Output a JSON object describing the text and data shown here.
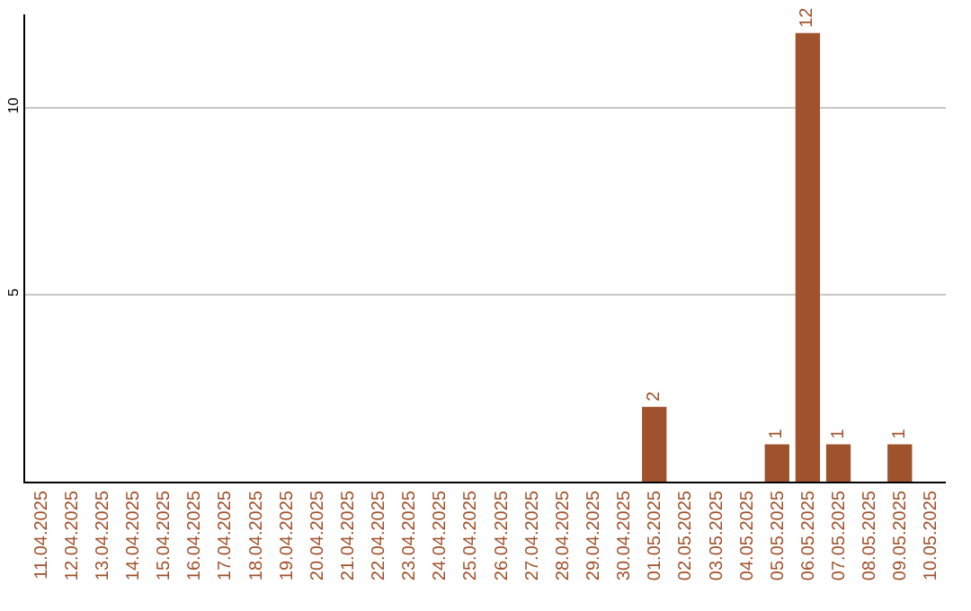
{
  "chart_data": {
    "type": "bar",
    "categories": [
      "11.04.2025",
      "12.04.2025",
      "13.04.2025",
      "14.04.2025",
      "15.04.2025",
      "16.04.2025",
      "17.04.2025",
      "18.04.2025",
      "19.04.2025",
      "20.04.2025",
      "21.04.2025",
      "22.04.2025",
      "23.04.2025",
      "24.04.2025",
      "25.04.2025",
      "26.04.2025",
      "27.04.2025",
      "28.04.2025",
      "29.04.2025",
      "30.04.2025",
      "01.05.2025",
      "02.05.2025",
      "03.05.2025",
      "04.05.2025",
      "05.05.2025",
      "06.05.2025",
      "07.05.2025",
      "08.05.2025",
      "09.05.2025",
      "10.05.2025"
    ],
    "values": [
      0,
      0,
      0,
      0,
      0,
      0,
      0,
      0,
      0,
      0,
      0,
      0,
      0,
      0,
      0,
      0,
      0,
      0,
      0,
      0,
      2,
      0,
      0,
      0,
      1,
      12,
      1,
      0,
      1,
      0
    ],
    "value_labels": [
      null,
      null,
      null,
      null,
      null,
      null,
      null,
      null,
      null,
      null,
      null,
      null,
      null,
      null,
      null,
      null,
      null,
      null,
      null,
      null,
      "2",
      null,
      null,
      null,
      "1",
      "12",
      "1",
      null,
      "1",
      null
    ],
    "color": "#a0522d",
    "ylim": [
      0,
      12.5
    ],
    "yticks": [
      5,
      10
    ],
    "grid": "y"
  }
}
